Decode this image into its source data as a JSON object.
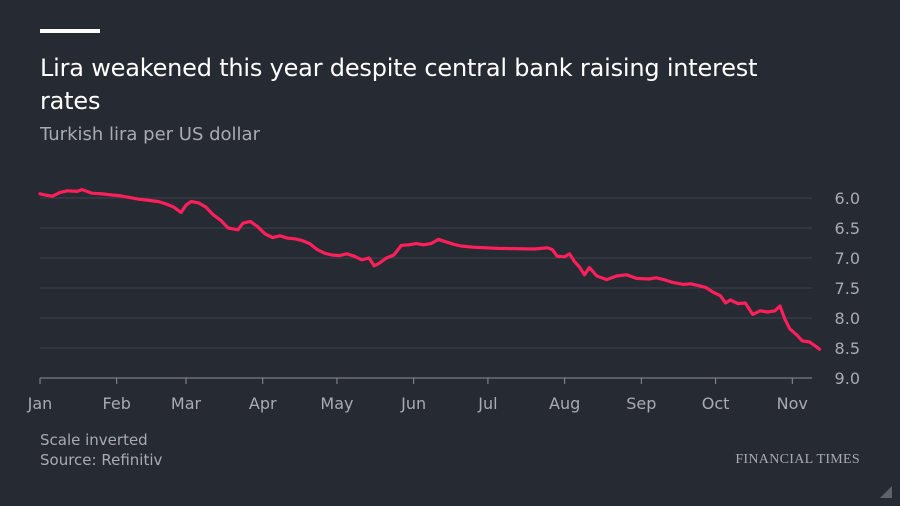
{
  "header": {
    "title": "Lira weakened this year despite central bank raising interest rates",
    "subtitle": "Turkish lira per US dollar"
  },
  "footer": {
    "note": "Scale inverted",
    "source": "Source: Refinitiv",
    "brand": "FINANCIAL TIMES"
  },
  "colors": {
    "line": "#ff1f5b",
    "background": "#262a33",
    "grid": "#3d414a",
    "muted": "#a9abb1"
  },
  "chart_data": {
    "type": "line",
    "title": "Lira weakened this year despite central bank raising interest rates",
    "subtitle": "Turkish lira per US dollar",
    "y_inverted": true,
    "ylim": [
      6.0,
      9.0
    ],
    "yticks": [
      "6.0",
      "6.5",
      "7.0",
      "7.5",
      "8.0",
      "8.5",
      "9.0"
    ],
    "x_domain": [
      "2018-01-01",
      "2018-11-13"
    ],
    "xticks": [
      {
        "date": "2018-01-01",
        "label": "Jan"
      },
      {
        "date": "2018-02-01",
        "label": "Feb"
      },
      {
        "date": "2018-03-01",
        "label": "Mar"
      },
      {
        "date": "2018-04-01",
        "label": "Apr"
      },
      {
        "date": "2018-05-01",
        "label": "May"
      },
      {
        "date": "2018-06-01",
        "label": "Jun"
      },
      {
        "date": "2018-07-01",
        "label": "Jul"
      },
      {
        "date": "2018-08-01",
        "label": "Aug"
      },
      {
        "date": "2018-09-01",
        "label": "Sep"
      },
      {
        "date": "2018-10-01",
        "label": "Oct"
      },
      {
        "date": "2018-11-01",
        "label": "Nov"
      }
    ],
    "grid": true,
    "series": [
      {
        "color": "#ff1f5b",
        "points": [
          [
            "2018-01-01",
            5.93
          ],
          [
            "2018-01-03",
            5.95
          ],
          [
            "2018-01-06",
            5.97
          ],
          [
            "2018-01-09",
            5.91
          ],
          [
            "2018-01-12",
            5.88
          ],
          [
            "2018-01-16",
            5.89
          ],
          [
            "2018-01-18",
            5.86
          ],
          [
            "2018-01-22",
            5.92
          ],
          [
            "2018-01-26",
            5.93
          ],
          [
            "2018-01-30",
            5.95
          ],
          [
            "2018-02-02",
            5.96
          ],
          [
            "2018-02-06",
            5.99
          ],
          [
            "2018-02-10",
            6.02
          ],
          [
            "2018-02-14",
            6.04
          ],
          [
            "2018-02-18",
            6.06
          ],
          [
            "2018-02-21",
            6.1
          ],
          [
            "2018-02-24",
            6.15
          ],
          [
            "2018-02-27",
            6.24
          ],
          [
            "2018-03-01",
            6.12
          ],
          [
            "2018-03-03",
            6.06
          ],
          [
            "2018-03-06",
            6.08
          ],
          [
            "2018-03-09",
            6.15
          ],
          [
            "2018-03-12",
            6.28
          ],
          [
            "2018-03-15",
            6.37
          ],
          [
            "2018-03-18",
            6.5
          ],
          [
            "2018-03-22",
            6.53
          ],
          [
            "2018-03-24",
            6.42
          ],
          [
            "2018-03-27",
            6.39
          ],
          [
            "2018-03-30",
            6.48
          ],
          [
            "2018-04-02",
            6.6
          ],
          [
            "2018-04-05",
            6.66
          ],
          [
            "2018-04-08",
            6.63
          ],
          [
            "2018-04-11",
            6.67
          ],
          [
            "2018-04-14",
            6.68
          ],
          [
            "2018-04-17",
            6.71
          ],
          [
            "2018-04-20",
            6.76
          ],
          [
            "2018-04-23",
            6.86
          ],
          [
            "2018-04-26",
            6.92
          ],
          [
            "2018-04-29",
            6.95
          ],
          [
            "2018-05-02",
            6.96
          ],
          [
            "2018-05-05",
            6.93
          ],
          [
            "2018-05-08",
            6.97
          ],
          [
            "2018-05-11",
            7.03
          ],
          [
            "2018-05-14",
            7.0
          ],
          [
            "2018-05-16",
            7.13
          ],
          [
            "2018-05-18",
            7.09
          ],
          [
            "2018-05-21",
            7.0
          ],
          [
            "2018-05-24",
            6.95
          ],
          [
            "2018-05-27",
            6.79
          ],
          [
            "2018-05-30",
            6.78
          ],
          [
            "2018-06-02",
            6.76
          ],
          [
            "2018-06-05",
            6.78
          ],
          [
            "2018-06-08",
            6.76
          ],
          [
            "2018-06-11",
            6.69
          ],
          [
            "2018-06-14",
            6.73
          ],
          [
            "2018-06-17",
            6.77
          ],
          [
            "2018-06-20",
            6.8
          ],
          [
            "2018-06-25",
            6.82
          ],
          [
            "2018-07-05",
            6.84
          ],
          [
            "2018-07-20",
            6.85
          ],
          [
            "2018-07-25",
            6.83
          ],
          [
            "2018-07-27",
            6.86
          ],
          [
            "2018-07-29",
            6.97
          ],
          [
            "2018-08-01",
            6.98
          ],
          [
            "2018-08-03",
            6.93
          ],
          [
            "2018-08-05",
            7.06
          ],
          [
            "2018-08-07",
            7.15
          ],
          [
            "2018-08-09",
            7.28
          ],
          [
            "2018-08-11",
            7.16
          ],
          [
            "2018-08-14",
            7.3
          ],
          [
            "2018-08-18",
            7.36
          ],
          [
            "2018-08-22",
            7.3
          ],
          [
            "2018-08-26",
            7.28
          ],
          [
            "2018-08-30",
            7.34
          ],
          [
            "2018-09-04",
            7.35
          ],
          [
            "2018-09-07",
            7.33
          ],
          [
            "2018-09-10",
            7.36
          ],
          [
            "2018-09-14",
            7.41
          ],
          [
            "2018-09-18",
            7.44
          ],
          [
            "2018-09-21",
            7.43
          ],
          [
            "2018-09-24",
            7.46
          ],
          [
            "2018-09-27",
            7.49
          ],
          [
            "2018-09-30",
            7.57
          ],
          [
            "2018-10-03",
            7.63
          ],
          [
            "2018-10-05",
            7.75
          ],
          [
            "2018-10-07",
            7.7
          ],
          [
            "2018-10-10",
            7.76
          ],
          [
            "2018-10-13",
            7.75
          ],
          [
            "2018-10-16",
            7.94
          ],
          [
            "2018-10-19",
            7.88
          ],
          [
            "2018-10-22",
            7.9
          ],
          [
            "2018-10-25",
            7.88
          ],
          [
            "2018-10-27",
            7.8
          ],
          [
            "2018-10-29",
            8.02
          ],
          [
            "2018-10-31",
            8.18
          ],
          [
            "2018-11-03",
            8.29
          ],
          [
            "2018-11-05",
            8.38
          ],
          [
            "2018-11-08",
            8.4
          ],
          [
            "2018-11-10",
            8.46
          ],
          [
            "2018-11-12",
            8.52
          ]
        ]
      }
    ]
  }
}
